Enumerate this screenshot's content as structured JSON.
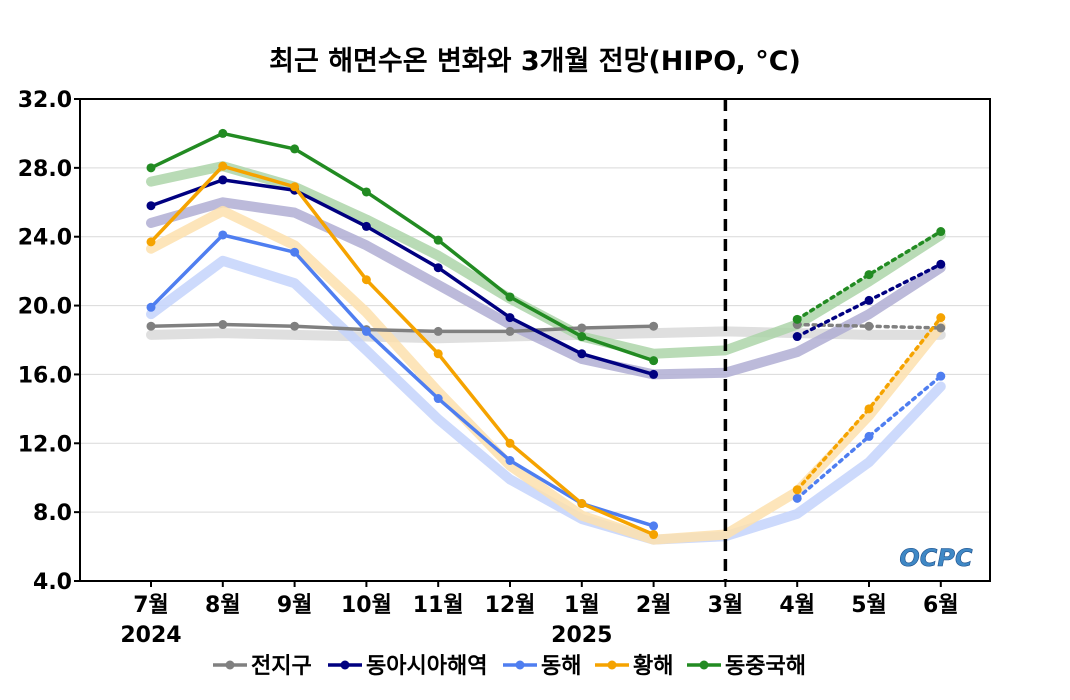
{
  "chart_data": {
    "type": "line",
    "title": "최근 해면수온 변화와 3개월 전망(HIPO, °C)",
    "categories": [
      "7월",
      "8월",
      "9월",
      "10월",
      "11월",
      "12월",
      "1월",
      "2월",
      "3월",
      "4월",
      "5월",
      "6월"
    ],
    "year_labels": [
      {
        "index": 0,
        "text": "2024"
      },
      {
        "index": 6,
        "text": "2025"
      }
    ],
    "ylim": [
      4.0,
      32.0
    ],
    "yticks": [
      "4.0",
      "8.0",
      "12.0",
      "16.0",
      "20.0",
      "24.0",
      "28.0",
      "32.0"
    ],
    "grid": true,
    "forecast_divider_index": 8,
    "legend_position": "bottom",
    "watermark": "OCPC",
    "series": [
      {
        "name": "전지구",
        "color": "#808080",
        "band_color": "#d9d9d9",
        "observed": [
          18.8,
          18.9,
          18.8,
          18.6,
          18.5,
          18.5,
          18.7,
          18.8
        ],
        "normal": [
          18.3,
          18.4,
          18.3,
          18.2,
          18.1,
          18.2,
          18.3,
          18.4,
          18.5,
          18.4,
          18.3,
          18.3
        ],
        "forecast": [
          18.9,
          18.8,
          18.7
        ]
      },
      {
        "name": "동아시아해역",
        "color": "#000080",
        "band_color": "#b0aed4",
        "observed": [
          25.8,
          27.3,
          26.7,
          24.6,
          22.2,
          19.3,
          17.2,
          16.0
        ],
        "normal": [
          24.8,
          26.0,
          25.4,
          23.5,
          21.2,
          18.9,
          16.9,
          16.0,
          16.1,
          17.3,
          19.5,
          22.2
        ],
        "forecast": [
          18.2,
          20.3,
          22.4
        ]
      },
      {
        "name": "동해",
        "color": "#4f7ef0",
        "band_color": "#c4d3fb",
        "observed": [
          19.9,
          24.1,
          23.1,
          18.5,
          14.6,
          11.0,
          8.5,
          7.2
        ],
        "normal": [
          19.5,
          22.6,
          21.3,
          17.4,
          13.4,
          9.9,
          7.6,
          6.4,
          6.6,
          7.9,
          10.9,
          15.3
        ],
        "forecast": [
          8.8,
          12.4,
          15.9
        ]
      },
      {
        "name": "황해",
        "color": "#f5a300",
        "band_color": "#fde1ae",
        "observed": [
          23.7,
          28.1,
          26.9,
          21.5,
          17.2,
          12.0,
          8.5,
          6.7
        ],
        "normal": [
          23.3,
          25.5,
          23.5,
          19.6,
          15.0,
          10.7,
          7.8,
          6.4,
          6.7,
          9.2,
          13.6,
          18.8
        ],
        "forecast": [
          9.3,
          14.0,
          19.3
        ]
      },
      {
        "name": "동중국해",
        "color": "#228b22",
        "band_color": "#add5a9",
        "observed": [
          28.0,
          30.0,
          29.1,
          26.6,
          23.8,
          20.5,
          18.2,
          16.8
        ],
        "normal": [
          27.2,
          28.1,
          26.9,
          25.0,
          22.9,
          20.4,
          18.2,
          17.2,
          17.4,
          18.9,
          21.4,
          24.1
        ],
        "forecast": [
          19.2,
          21.8,
          24.3
        ]
      }
    ]
  }
}
